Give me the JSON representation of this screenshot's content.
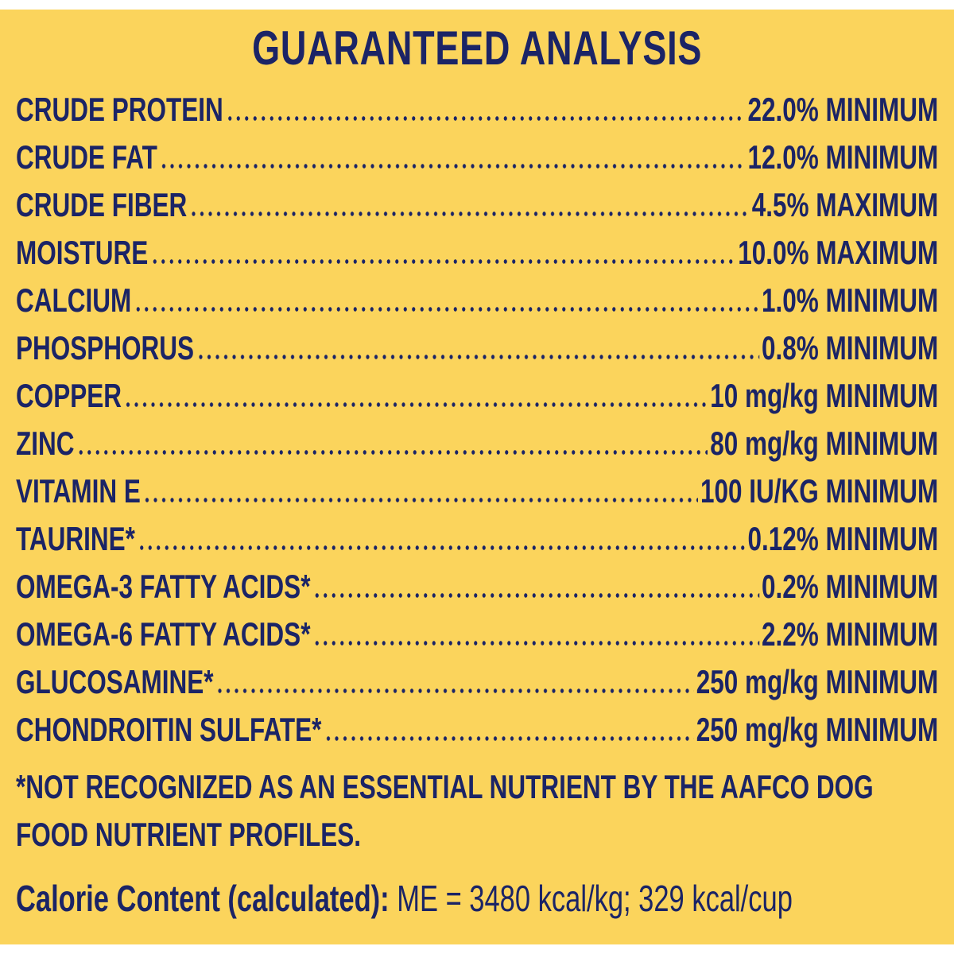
{
  "title": "GUARANTEED ANALYSIS",
  "rows": [
    {
      "name": "CRUDE PROTEIN",
      "value": "22.0% MINIMUM"
    },
    {
      "name": "CRUDE FAT",
      "value": "12.0% MINIMUM"
    },
    {
      "name": "CRUDE FIBER",
      "value": "4.5% MAXIMUM"
    },
    {
      "name": "MOISTURE",
      "value": "10.0% MAXIMUM"
    },
    {
      "name": "CALCIUM",
      "value": "1.0% MINIMUM"
    },
    {
      "name": "PHOSPHORUS",
      "value": "0.8% MINIMUM"
    },
    {
      "name": "COPPER",
      "value": "10 mg/kg MINIMUM"
    },
    {
      "name": "ZINC",
      "value": "80 mg/kg MINIMUM"
    },
    {
      "name": "VITAMIN E",
      "value": "100 IU/KG MINIMUM"
    },
    {
      "name": "TAURINE*",
      "value": "0.12% MINIMUM"
    },
    {
      "name": "OMEGA-3 FATTY ACIDS*",
      "value": "0.2% MINIMUM"
    },
    {
      "name": "OMEGA-6 FATTY ACIDS*",
      "value": "2.2% MINIMUM"
    },
    {
      "name": "GLUCOSAMINE*",
      "value": "250 mg/kg MINIMUM"
    },
    {
      "name": "CHONDROITIN SULFATE*",
      "value": "250 mg/kg MINIMUM"
    }
  ],
  "footnote": "*NOT RECOGNIZED AS AN ESSENTIAL NUTRIENT BY THE AAFCO DOG FOOD NUTRIENT PROFILES.",
  "calorie": {
    "label": "Calorie Content (calculated):",
    "value": "ME = 3480 kcal/kg; 329 kcal/cup"
  }
}
